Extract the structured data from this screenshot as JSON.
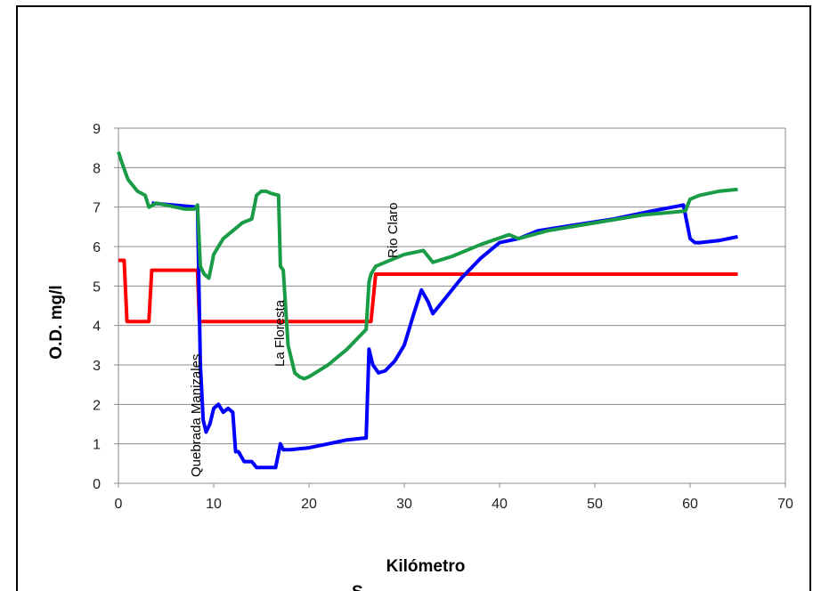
{
  "chart_data": {
    "type": "line",
    "xlabel": "Kilómetro",
    "ylabel": "O.D. mg/l",
    "xlim": [
      0,
      70
    ],
    "ylim": [
      0,
      9
    ],
    "xticks": [
      "0",
      "10",
      "20",
      "30",
      "40",
      "50",
      "60",
      "70"
    ],
    "yticks": [
      "0",
      "1",
      "2",
      "3",
      "4",
      "5",
      "6",
      "7",
      "8",
      "9"
    ],
    "grid": "horizontal",
    "annotations": [
      "Quebrada Manizales",
      "La Floresta",
      "Rio Claro"
    ],
    "partial_text": "S",
    "series": [
      {
        "color": "#ff0000",
        "x": [
          0,
          0.6,
          0.9,
          3.2,
          3.5,
          8.3,
          8.5,
          26.5,
          27.0,
          65
        ],
        "y": [
          5.65,
          5.65,
          4.1,
          4.1,
          5.4,
          5.4,
          4.1,
          4.1,
          5.3,
          5.3
        ]
      },
      {
        "color": "#0000ff",
        "x": [
          3.5,
          8.3,
          8.6,
          8.9,
          9.2,
          9.6,
          10.0,
          10.5,
          11.0,
          11.5,
          12.0,
          12.3,
          12.6,
          13.2,
          14.0,
          14.5,
          15.5,
          16.5,
          17.0,
          17.3,
          18.0,
          20.0,
          22.0,
          24.0,
          26.0,
          26.3,
          26.7,
          27.3,
          28.0,
          29.0,
          30.0,
          31.0,
          31.8,
          32.5,
          33.0,
          34.0,
          36.0,
          38.0,
          40.0,
          42.0,
          44.0,
          48.0,
          52.0,
          56.0,
          59.3,
          60.0,
          60.5,
          61.0,
          63.0,
          65.0
        ],
        "y": [
          7.1,
          7.0,
          3.0,
          1.6,
          1.3,
          1.5,
          1.9,
          2.0,
          1.8,
          1.9,
          1.8,
          0.8,
          0.8,
          0.55,
          0.55,
          0.4,
          0.4,
          0.4,
          1.0,
          0.85,
          0.85,
          0.9,
          1.0,
          1.1,
          1.15,
          3.4,
          3.0,
          2.8,
          2.85,
          3.1,
          3.5,
          4.3,
          4.9,
          4.6,
          4.3,
          4.6,
          5.2,
          5.7,
          6.1,
          6.2,
          6.4,
          6.55,
          6.7,
          6.9,
          7.05,
          6.2,
          6.1,
          6.1,
          6.15,
          6.25
        ]
      },
      {
        "color": "#1a9c47",
        "x": [
          0,
          0.4,
          1.0,
          2.0,
          2.8,
          3.2,
          4.0,
          5.0,
          6.0,
          7.0,
          8.0,
          8.3,
          8.6,
          9.0,
          9.5,
          10.0,
          10.5,
          11.0,
          12.0,
          13.0,
          14.0,
          14.5,
          15.0,
          15.5,
          16.0,
          16.8,
          17.0,
          17.3,
          17.8,
          18.5,
          19.0,
          19.5,
          20.0,
          22.0,
          24.0,
          26.0,
          26.3,
          26.5,
          27.0,
          28.0,
          30.0,
          31.0,
          32.0,
          32.5,
          33.0,
          35.0,
          38.0,
          41.0,
          42.0,
          45.0,
          50.0,
          55.0,
          59.5,
          60.0,
          61.0,
          63.0,
          65.0
        ],
        "y": [
          8.4,
          8.1,
          7.7,
          7.4,
          7.3,
          7.0,
          7.1,
          7.05,
          7.0,
          6.95,
          6.95,
          7.05,
          5.5,
          5.3,
          5.2,
          5.8,
          6.0,
          6.2,
          6.4,
          6.6,
          6.7,
          7.3,
          7.4,
          7.4,
          7.35,
          7.3,
          5.5,
          5.4,
          3.5,
          2.8,
          2.7,
          2.65,
          2.7,
          3.0,
          3.4,
          3.9,
          5.1,
          5.3,
          5.5,
          5.6,
          5.8,
          5.85,
          5.9,
          5.75,
          5.6,
          5.75,
          6.05,
          6.3,
          6.2,
          6.4,
          6.6,
          6.8,
          6.9,
          7.2,
          7.3,
          7.4,
          7.45
        ]
      }
    ]
  }
}
